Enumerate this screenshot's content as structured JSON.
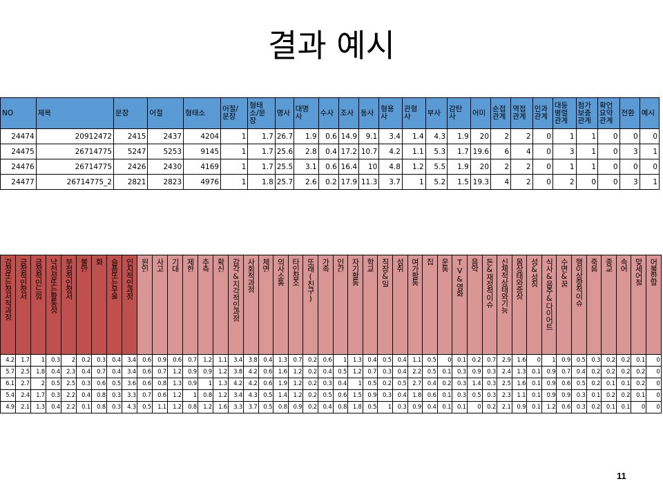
{
  "slide": {
    "title": "결과 예시",
    "page_number": "11"
  },
  "table1": {
    "headers": [
      "NO",
      "제목",
      "문장",
      "어절",
      "형태소",
      "어절/\n문장",
      "형태\n소/문\n장",
      "명사",
      "대명\n사",
      "수사",
      "조사",
      "동사",
      "형용\n사",
      "관형\n사",
      "부사",
      "감탄\n사",
      "어미",
      "순접\n관계",
      "역접\n관계",
      "인과\n관계",
      "대등\n병렬\n관계",
      "첨가\n보충\n관계",
      "확언\n요약\n관계",
      "전환",
      "예시"
    ],
    "rows": [
      [
        "24474",
        "20912472",
        "2415",
        "2437",
        "4204",
        "1",
        "1.7",
        "26.7",
        "1.9",
        "0.6",
        "14.9",
        "9.1",
        "3.4",
        "1.4",
        "4.3",
        "1.9",
        "20",
        "2",
        "2",
        "0",
        "1",
        "1",
        "0",
        "0",
        "0"
      ],
      [
        "24475",
        "26714775",
        "5247",
        "5253",
        "9145",
        "1",
        "1.7",
        "25.6",
        "2.8",
        "0.4",
        "17.2",
        "10.7",
        "4.2",
        "1.1",
        "5.3",
        "1.7",
        "19.6",
        "6",
        "4",
        "0",
        "3",
        "1",
        "0",
        "3",
        "1"
      ],
      [
        "24476",
        "26714775",
        "2426",
        "2430",
        "4169",
        "1",
        "1.7",
        "25.5",
        "3.1",
        "0.6",
        "16.4",
        "10",
        "4.8",
        "1.2",
        "5.5",
        "1.9",
        "20",
        "2",
        "2",
        "0",
        "1",
        "1",
        "0",
        "0",
        "0"
      ],
      [
        "24477",
        "26714775_2",
        "2821",
        "2823",
        "4976",
        "1",
        "1.8",
        "25.7",
        "2.6",
        "0.2",
        "17.9",
        "11.3",
        "3.7",
        "1",
        "5.2",
        "1.5",
        "19.3",
        "4",
        "2",
        "0",
        "2",
        "0",
        "0",
        "3",
        "1"
      ]
    ]
  },
  "table2": {
    "headers": [
      "감정또는정서적과정",
      "긍정적인정서",
      "긍정적인느낌",
      "낙천성또는활동성",
      "부정적인정서",
      "불안",
      "화",
      "슬픔또는우울",
      "인지적인과정",
      "원인",
      "사고",
      "기대",
      "제한",
      "추측",
      "확신",
      "감각&지각적인과정",
      "사회적과정",
      "체면",
      "의사소통",
      "타인참조",
      "또래(친구)",
      "가족",
      "인간",
      "자기활동",
      "학교",
      "직장&일",
      "성취",
      "여가활동",
      "집",
      "운동",
      "TV&영화",
      "음악",
      "돈&재정적이슈",
      "신체적상태와기능",
      "몸상태와증상",
      "성&성징",
      "식사&음주&다이어트",
      "수면&꿈",
      "행이상향적이슈",
      "죽음",
      "종교",
      "속어",
      "맞세어절",
      "어불한말"
    ],
    "dark_count": 9,
    "rows": [
      [
        "4.2",
        "1.7",
        "1",
        "0.3",
        "2",
        "0.2",
        "0.3",
        "0.4",
        "3.4",
        "0.6",
        "0.9",
        "0.6",
        "0.7",
        "1.2",
        "1.1",
        "3.4",
        "3.8",
        "0.4",
        "1.3",
        "0.7",
        "0.2",
        "0.6",
        "1",
        "1.3",
        "0.4",
        "0.5",
        "0.4",
        "1.1",
        "0.5",
        "0",
        "0.1",
        "0.2",
        "0.7",
        "2.9",
        "1.6",
        "0",
        "1",
        "0.9",
        "0.5",
        "0.3",
        "0.2",
        "0.2",
        "0.1",
        "0"
      ],
      [
        "5.7",
        "2.5",
        "1.8",
        "0.4",
        "2.3",
        "0.4",
        "0.7",
        "0.4",
        "3.4",
        "0.6",
        "0.7",
        "1.2",
        "0.9",
        "0.9",
        "1.2",
        "3.8",
        "4.2",
        "0.6",
        "1.6",
        "1.2",
        "0.2",
        "0.4",
        "0.5",
        "1.2",
        "0.7",
        "0.3",
        "0.4",
        "2.2",
        "0.5",
        "0.1",
        "0.3",
        "0.9",
        "0.3",
        "2.4",
        "1.3",
        "0.1",
        "0.9",
        "0.7",
        "0.4",
        "0.2",
        "0.2",
        "0.2",
        "0.2",
        "0"
      ],
      [
        "6.1",
        "2.7",
        "2",
        "0.5",
        "2.5",
        "0.3",
        "0.6",
        "0.5",
        "3.6",
        "0.6",
        "0.8",
        "1.3",
        "0.9",
        "1",
        "1.3",
        "4.2",
        "4.2",
        "0.6",
        "1.9",
        "1.2",
        "0.2",
        "0.3",
        "0.4",
        "1",
        "0.5",
        "0.2",
        "0.5",
        "2.7",
        "0.4",
        "0.2",
        "0.3",
        "1.4",
        "0.3",
        "2.5",
        "1.6",
        "0.1",
        "0.9",
        "0.6",
        "0.5",
        "0.2",
        "0.1",
        "0.1",
        "0.2",
        "0"
      ],
      [
        "5.4",
        "2.4",
        "1.7",
        "0.3",
        "2.2",
        "0.4",
        "0.8",
        "0.3",
        "3.3",
        "0.7",
        "0.6",
        "1.2",
        "1",
        "0.8",
        "1.2",
        "3.4",
        "4.3",
        "0.5",
        "1.4",
        "1.2",
        "0.2",
        "0.5",
        "0.6",
        "1.5",
        "0.9",
        "0.3",
        "0.4",
        "1.8",
        "0.6",
        "0.1",
        "0.3",
        "0.5",
        "0.3",
        "2.3",
        "1.1",
        "0.1",
        "0.9",
        "0.9",
        "0.3",
        "0.1",
        "0.2",
        "0.2",
        "0.1",
        "0"
      ],
      [
        "4.9",
        "2.1",
        "1.3",
        "0.4",
        "2.2",
        "0.1",
        "0.8",
        "0.3",
        "4.3",
        "0.5",
        "1.1",
        "1.2",
        "0.8",
        "1.2",
        "1.6",
        "3.3",
        "3.7",
        "0.5",
        "0.8",
        "0.9",
        "0.2",
        "0.4",
        "0.8",
        "1.8",
        "0.5",
        "1",
        "0.3",
        "0.9",
        "0.4",
        "0.1",
        "0.1",
        "0",
        "0.2",
        "2.1",
        "0.9",
        "0.1",
        "1.2",
        "0.6",
        "0.3",
        "0.2",
        "0.1",
        "0.1",
        "0",
        "0"
      ]
    ]
  }
}
